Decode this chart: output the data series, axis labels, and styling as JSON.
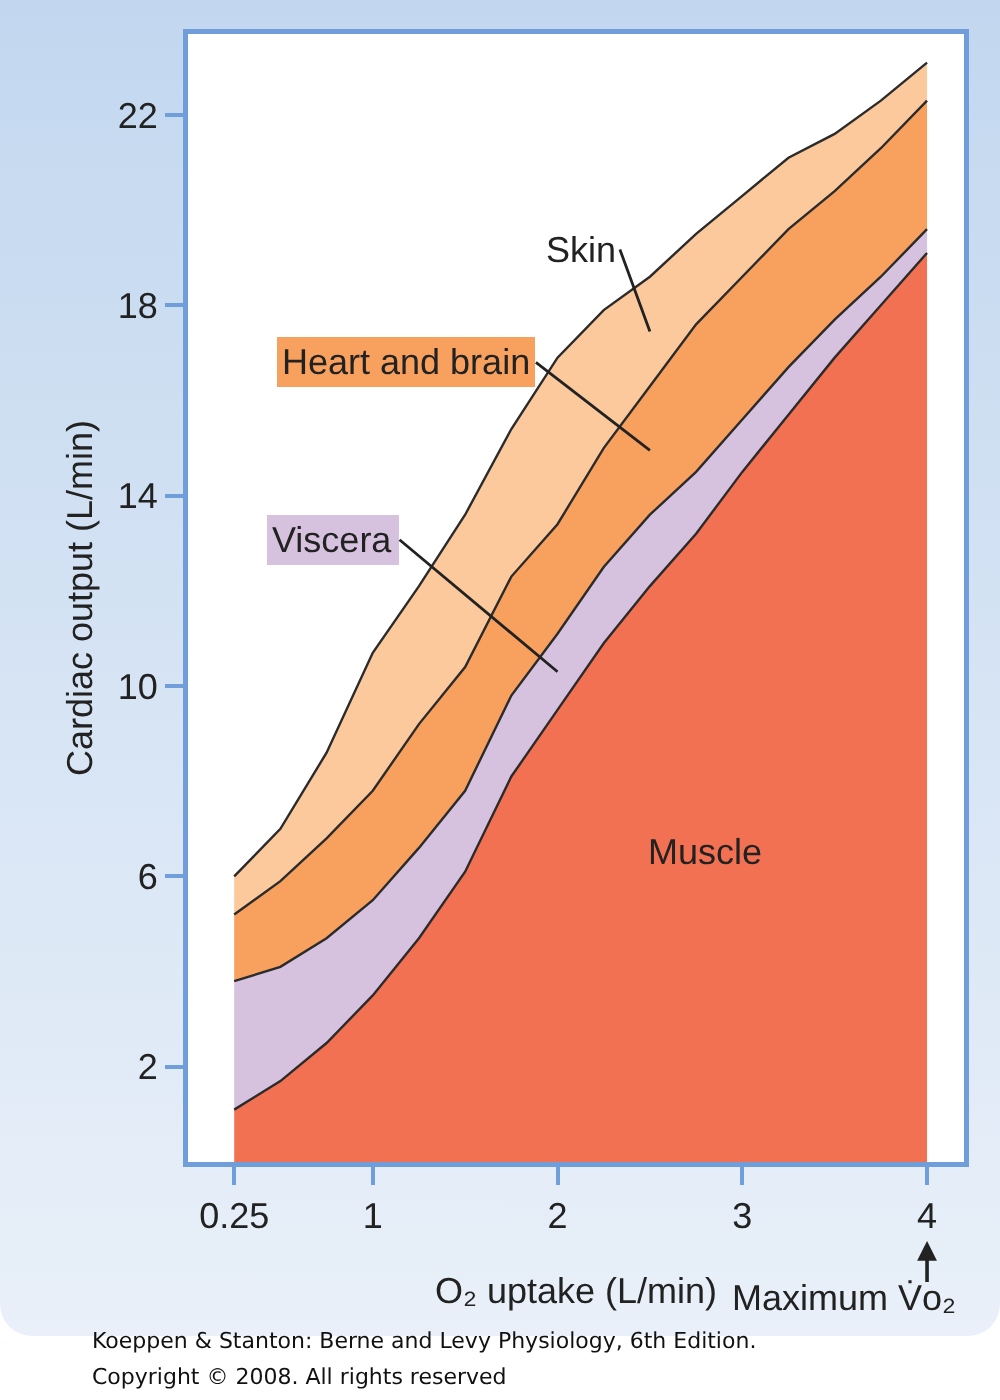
{
  "chart_data": {
    "type": "area",
    "stacked": true,
    "xlabel": "O₂ uptake (L/min)",
    "ylabel": "Cardiac output (L/min)",
    "x": [
      0.25,
      0.5,
      0.75,
      1,
      1.25,
      1.5,
      1.75,
      2,
      2.25,
      2.5,
      2.75,
      3,
      3.25,
      3.5,
      3.75,
      4
    ],
    "series": [
      {
        "name": "Muscle",
        "color": "#f37153",
        "values": [
          1.1,
          1.7,
          2.5,
          3.5,
          4.7,
          6.1,
          8.1,
          9.5,
          10.9,
          12.1,
          13.2,
          14.5,
          15.7,
          16.9,
          18.0,
          19.1
        ]
      },
      {
        "name": "Viscera",
        "color": "#d6c2de",
        "values": [
          2.7,
          2.4,
          2.2,
          2.0,
          1.9,
          1.7,
          1.7,
          1.6,
          1.6,
          1.5,
          1.3,
          1.1,
          1.0,
          0.8,
          0.6,
          0.5
        ]
      },
      {
        "name": "Heart and brain",
        "color": "#f8a05e",
        "values": [
          1.4,
          1.8,
          2.1,
          2.3,
          2.6,
          2.6,
          2.5,
          2.3,
          2.5,
          2.7,
          3.1,
          3.0,
          2.9,
          2.7,
          2.7,
          2.7
        ]
      },
      {
        "name": "Skin",
        "color": "#fbc99c",
        "values": [
          0.8,
          1.1,
          1.8,
          2.9,
          2.9,
          3.2,
          3.1,
          3.5,
          2.9,
          2.3,
          1.9,
          1.7,
          1.5,
          1.2,
          1.0,
          0.8
        ]
      }
    ],
    "xlim": [
      0,
      4.2
    ],
    "xticks": [
      0.25,
      1,
      2,
      3,
      4
    ],
    "ylim": [
      0,
      23.7
    ],
    "yticks": [
      2,
      6,
      10,
      14,
      18,
      22
    ],
    "annotations": [
      "Maximum V̇o₂",
      "Koeppen & Stanton: Berne and Levy Physiology, 6th Edition.",
      "Copyright © 2008. All rights reserved"
    ]
  }
}
